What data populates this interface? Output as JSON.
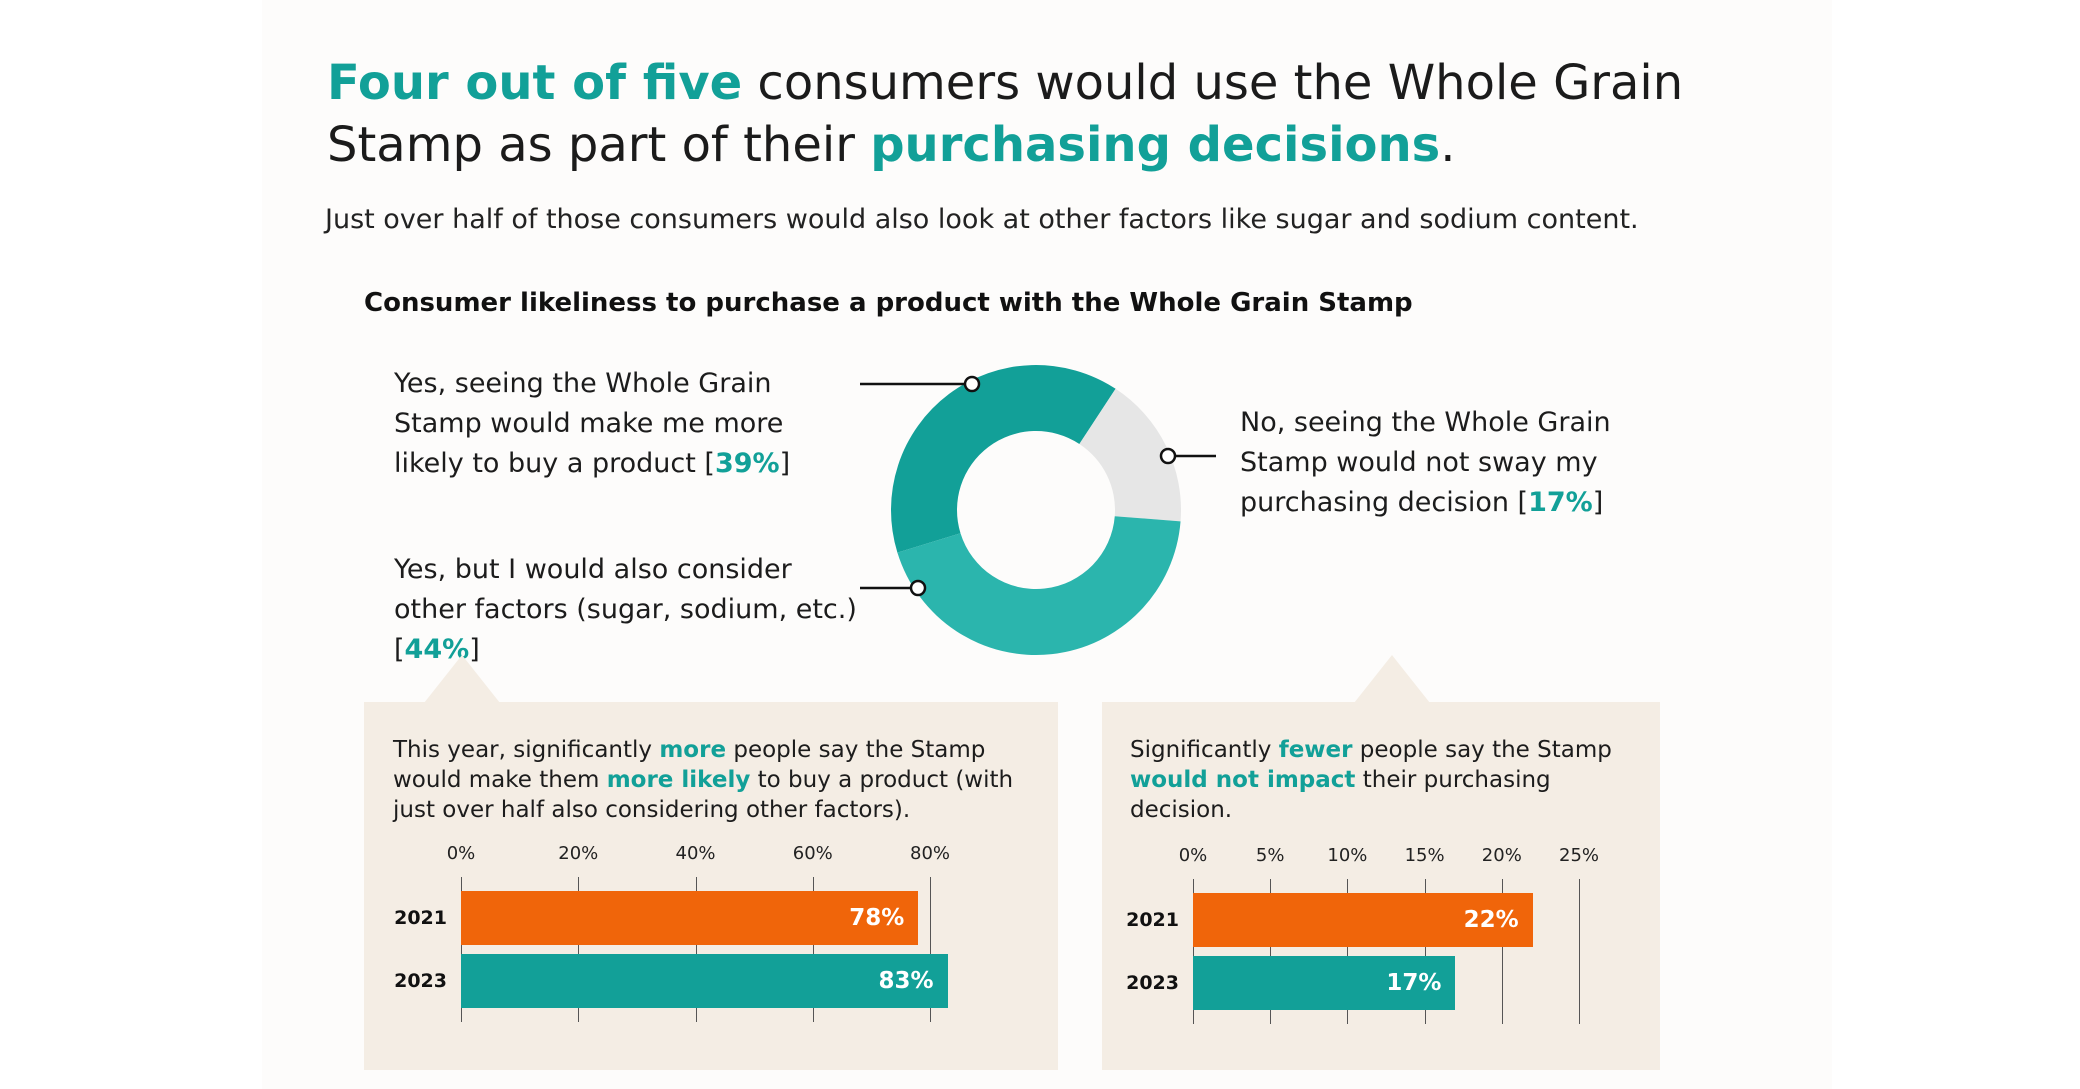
{
  "headline": {
    "part1": "Four out of five",
    "part2": " consumers would use the Whole Grain Stamp as part of their ",
    "part3": "purchasing decisions",
    "part4": "."
  },
  "subtitle": "Just over half of those consumers would also look at other factors like sugar and sodium content.",
  "colors": {
    "teal": "#12a098",
    "teal_light": "#2bb5ad",
    "grey": "#e6e6e6",
    "orange": "#f0650a",
    "panel": "#f4ede4"
  },
  "donut": {
    "title": "Consumer likeliness to purchase a product with the Whole Grain Stamp",
    "slices": [
      {
        "label": "Yes, seeing the Whole Grain Stamp would make me more likely to buy a product",
        "pct_text": "39%",
        "value": 39,
        "color": "#12a098"
      },
      {
        "label": "No, seeing the Whole Grain Stamp would not sway my purchasing decision",
        "pct_text": "17%",
        "value": 17,
        "color": "#e6e6e6"
      },
      {
        "label": "Yes, but I would also consider other factors (sugar, sodium, etc.)",
        "pct_text": "44%",
        "value": 44,
        "color": "#2bb5ad"
      }
    ]
  },
  "panel_left": {
    "t1": "This year, significantly ",
    "t2": "more",
    "t3": " people say the Stamp would make them ",
    "t4": "more likely",
    "t5": " to buy a product (with just over half also considering other factors)."
  },
  "panel_right": {
    "t1": "Significantly ",
    "t2": "fewer",
    "t3": " people say the Stamp ",
    "t4": "would not impact",
    "t5": " their purchasing decision."
  },
  "chart_data": [
    {
      "type": "pie",
      "title": "Consumer likeliness to purchase a product with the Whole Grain Stamp",
      "categories": [
        "Yes, seeing the Whole Grain Stamp would make me more likely to buy a product",
        "No, seeing the Whole Grain Stamp would not sway my purchasing decision",
        "Yes, but I would also consider other factors (sugar, sodium, etc.)"
      ],
      "values": [
        39,
        17,
        44
      ]
    },
    {
      "type": "bar",
      "orientation": "horizontal",
      "categories": [
        "2021",
        "2023"
      ],
      "values": [
        78,
        83
      ],
      "value_labels": [
        "78%",
        "83%"
      ],
      "xlim": [
        0,
        80
      ],
      "xticks": [
        "0%",
        "20%",
        "40%",
        "60%",
        "80%"
      ],
      "xtick_values": [
        0,
        20,
        40,
        60,
        80
      ],
      "grid": true,
      "colors": [
        "#f0650a",
        "#12a098"
      ]
    },
    {
      "type": "bar",
      "orientation": "horizontal",
      "categories": [
        "2021",
        "2023"
      ],
      "values": [
        22,
        17
      ],
      "value_labels": [
        "22%",
        "17%"
      ],
      "xlim": [
        0,
        25
      ],
      "xticks": [
        "0%",
        "5%",
        "10%",
        "15%",
        "20%",
        "25%"
      ],
      "xtick_values": [
        0,
        5,
        10,
        15,
        20,
        25
      ],
      "grid": true,
      "colors": [
        "#f0650a",
        "#12a098"
      ]
    }
  ]
}
